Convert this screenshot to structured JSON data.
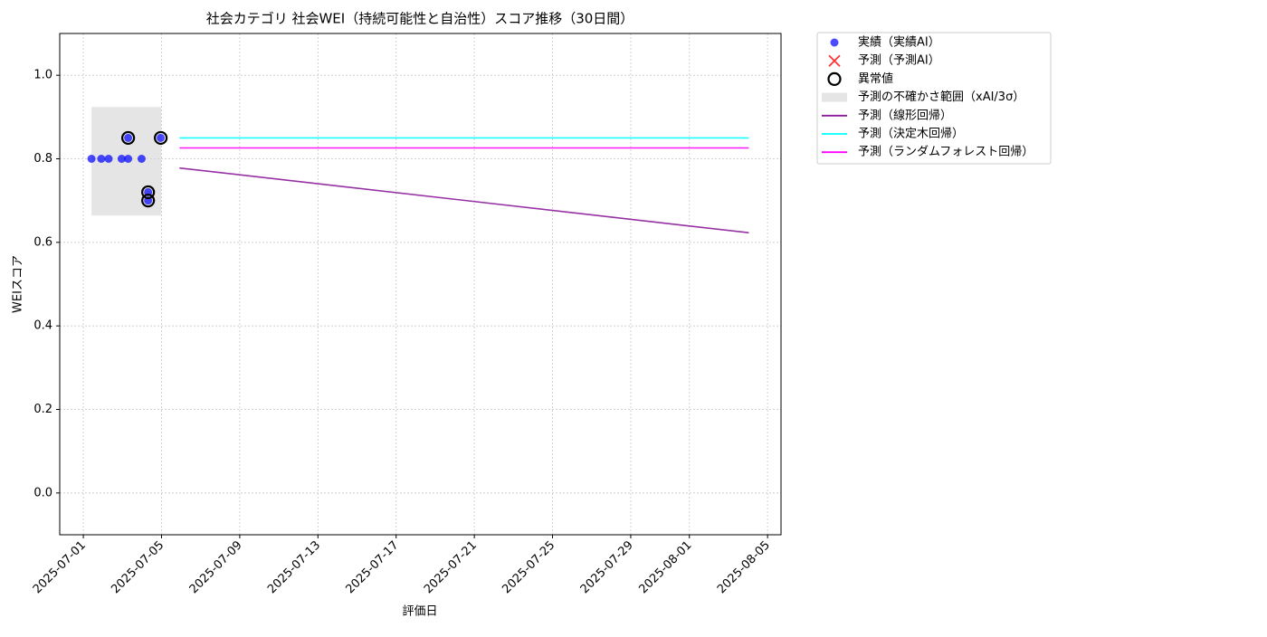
{
  "chart_data": {
    "type": "scatter",
    "title": "社会カテゴリ 社会WEI（持続可能性と自治性）スコア推移（30日間）",
    "x_label": "評価日",
    "y_label": "WEIスコア",
    "xlim": [
      "2025-06-29T19:00",
      "2025-08-05T16:30"
    ],
    "ylim": [
      -0.1,
      1.1
    ],
    "xticks": [
      "2025-07-01",
      "2025-07-05",
      "2025-07-09",
      "2025-07-13",
      "2025-07-17",
      "2025-07-21",
      "2025-07-25",
      "2025-07-29",
      "2025-08-01",
      "2025-08-05"
    ],
    "yticks": [
      0.0,
      0.2,
      0.4,
      0.6,
      0.8,
      1.0
    ],
    "grid": true,
    "legend": "outside-upper-right",
    "series": [
      {
        "name": "実績（実績AI）",
        "kind": "dots",
        "color": "#0000ff",
        "x": [
          "2025-07-01T10:00",
          "2025-07-01T22:00",
          "2025-07-02T07:00",
          "2025-07-02T23:00",
          "2025-07-03T07:00",
          "2025-07-03T07:00",
          "2025-07-03T23:30",
          "2025-07-04T07:30",
          "2025-07-04T07:30",
          "2025-07-04T23:00"
        ],
        "values": [
          0.8,
          0.8,
          0.8,
          0.8,
          0.85,
          0.8,
          0.8,
          0.72,
          0.7,
          0.85
        ]
      },
      {
        "name": "予測（予測AI）",
        "kind": "cross",
        "color": "#ff0000",
        "x": [],
        "values": []
      },
      {
        "name": "異常値",
        "kind": "ring",
        "color": "#000000",
        "x": [
          "2025-07-03T07:00",
          "2025-07-04T07:30",
          "2025-07-04T07:30",
          "2025-07-04T23:00"
        ],
        "values": [
          0.85,
          0.72,
          0.7,
          0.85
        ]
      },
      {
        "name": "予測の不確かさ範囲（xAI/3σ）",
        "kind": "band",
        "color": "#d3d3d3",
        "x": [
          "2025-07-01T10:00",
          "2025-07-04T23:30"
        ],
        "low": 0.664,
        "high": 0.924
      },
      {
        "name": "予測（線形回帰）",
        "kind": "line",
        "color": "#8b1a9a",
        "x": [
          "2025-07-05T22:00",
          "2025-08-04T01:00"
        ],
        "values": [
          0.778,
          0.623
        ]
      },
      {
        "name": "予測（決定木回帰）",
        "kind": "line",
        "color": "#00ffff",
        "x": [
          "2025-07-05T22:00",
          "2025-08-04T01:00"
        ],
        "values": [
          0.85,
          0.85
        ]
      },
      {
        "name": "予測（ランダムフォレスト回帰）",
        "kind": "line",
        "color": "#ff00ff",
        "x": [
          "2025-07-05T22:00",
          "2025-08-04T01:00"
        ],
        "values": [
          0.826,
          0.826
        ]
      }
    ]
  }
}
